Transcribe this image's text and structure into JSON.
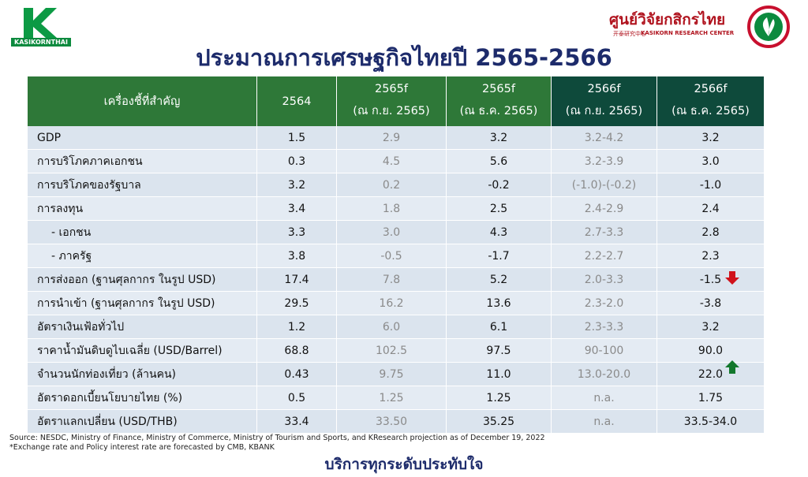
{
  "header": {
    "brand_left": "KASIKORNTHAI",
    "brand_right_th": "ศูนย์วิจัยกสิกรไทย",
    "brand_right_cn": "开泰研究中心",
    "brand_right_en": "KASIKORN RESEARCH CENTER",
    "title": "ประมาณการเศรษฐกิจไทยปี 2565-2566"
  },
  "table": {
    "columns": [
      [
        "เครื่องชี้ที่สำคัญ"
      ],
      [
        "2564"
      ],
      [
        "2565f",
        "(ณ ก.ย. 2565)"
      ],
      [
        "2565f",
        "(ณ ธ.ค. 2565)"
      ],
      [
        "2566f",
        "(ณ ก.ย. 2565)"
      ],
      [
        "2566f",
        "(ณ ธ.ค. 2565)"
      ]
    ],
    "rows": [
      [
        "GDP",
        "1.5",
        "2.9",
        "3.2",
        "3.2-4.2",
        "3.2"
      ],
      [
        "การบริโภคภาคเอกชน",
        "0.3",
        "4.5",
        "5.6",
        "3.2-3.9",
        "3.0"
      ],
      [
        "การบริโภคของรัฐบาล",
        "3.2",
        "0.2",
        "-0.2",
        "(-1.0)-(-0.2)",
        "-1.0"
      ],
      [
        "การลงทุน",
        "3.4",
        "1.8",
        "2.5",
        "2.4-2.9",
        "2.4"
      ],
      [
        "- เอกชน",
        "3.3",
        "3.0",
        "4.3",
        "2.7-3.3",
        "2.8"
      ],
      [
        "- ภาครัฐ",
        "3.8",
        "-0.5",
        "-1.7",
        "2.2-2.7",
        "2.3"
      ],
      [
        "การส่งออก (ฐานศุลกากร ในรูป USD)",
        "17.4",
        "7.8",
        "5.2",
        "2.0-3.3",
        "-1.5"
      ],
      [
        "การนำเข้า (ฐานศุลกากร ในรูป USD)",
        "29.5",
        "16.2",
        "13.6",
        "2.3-2.0",
        "-3.8"
      ],
      [
        "อัตราเงินเฟ้อทั่วไป",
        "1.2",
        "6.0",
        "6.1",
        "2.3-3.3",
        "3.2"
      ],
      [
        "ราคาน้ำมันดิบดูไบเฉลี่ย (USD/Barrel)",
        "68.8",
        "102.5",
        "97.5",
        "90-100",
        "90.0"
      ],
      [
        "จำนวนนักท่องเที่ยว (ล้านคน)",
        "0.43",
        "9.75",
        "11.0",
        "13.0-20.0",
        "22.0"
      ],
      [
        "อัตราดอกเบี้ยนโยบายไทย (%)",
        "0.5",
        "1.25",
        "1.25",
        "n.a.",
        "1.75"
      ],
      [
        "อัตราแลกเปลี่ยน (USD/THB)",
        "33.4",
        "33.50",
        "35.25",
        "n.a.",
        "33.5-34.0"
      ]
    ]
  },
  "notes": [
    "Source: NESDC, Ministry of Finance, Ministry of Commerce, Ministry of Tourism and Sports, and KResearch projection as of December 19, 2022",
    "*Exchange rate and Policy interest rate are forecasted by CMB, KBANK"
  ],
  "footer": "บริการทุกระดับประทับใจ"
}
